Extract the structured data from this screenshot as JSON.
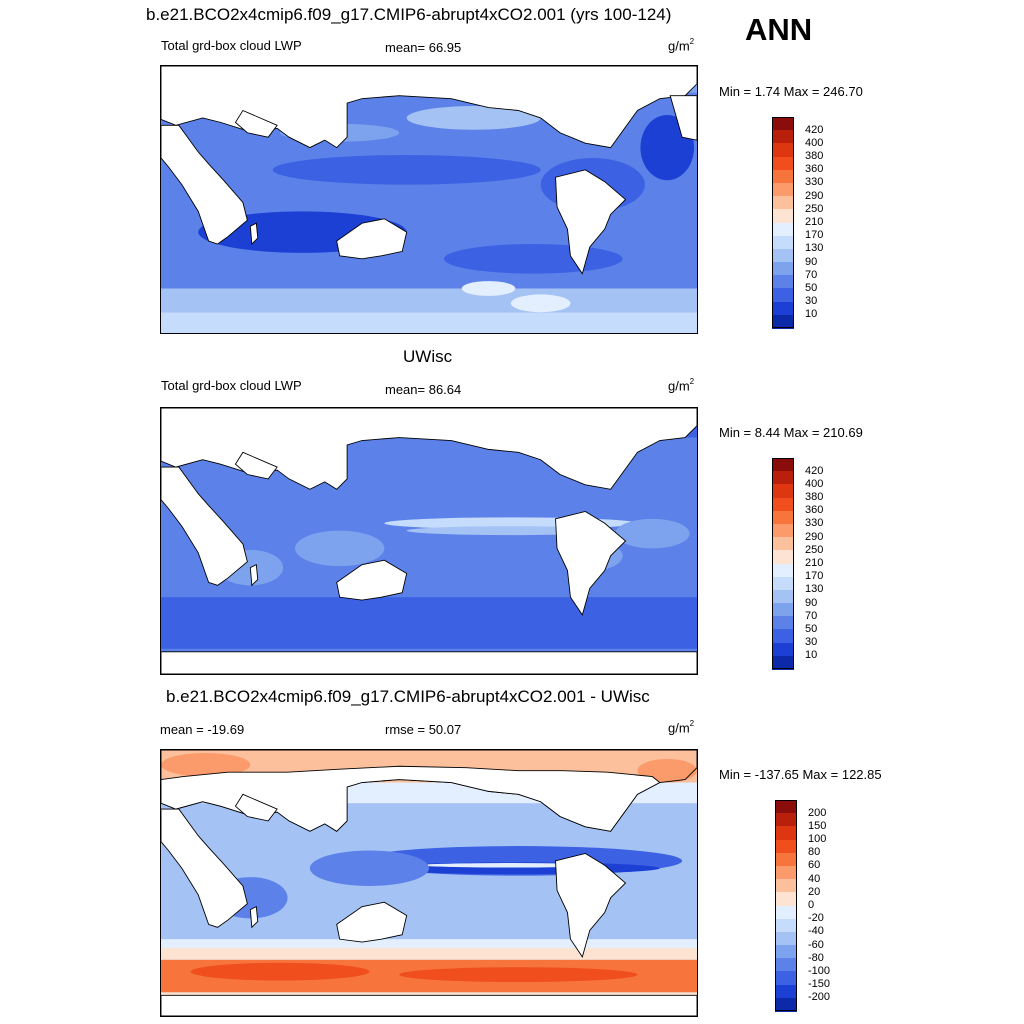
{
  "season": "ANN",
  "panels": [
    {
      "title": "b.e21.BCO2x4cmip6.f09_g17.CMIP6-abrupt4xCO2.001 (yrs 100-124)",
      "left_label": "Total grd-box cloud LWP",
      "center_label": "mean=  66.95",
      "units_base": "g/m",
      "units_exp": "2",
      "minmax": "Min =   1.74 Max = 246.70",
      "colorbar_ticks": [
        "420",
        "400",
        "380",
        "360",
        "330",
        "290",
        "250",
        "210",
        "170",
        "130",
        "90",
        "70",
        "50",
        "30",
        "10"
      ],
      "colorbar_colors": [
        "#8b0d0b",
        "#b8200c",
        "#dd3610",
        "#f04e1d",
        "#f7743c",
        "#fb9b6c",
        "#fcc09d",
        "#fde3d1",
        "#e3efff",
        "#c5dcfc",
        "#a5c2f4",
        "#7ea3ee",
        "#5c82ea",
        "#3c62e3",
        "#1d40d4",
        "#0b29a8"
      ],
      "map_style": "model"
    },
    {
      "title": "UWisc",
      "left_label": "Total grd-box cloud LWP",
      "center_label": "mean=  86.64",
      "units_base": "g/m",
      "units_exp": "2",
      "minmax": "Min =   8.44 Max = 210.69",
      "colorbar_ticks": [
        "420",
        "400",
        "380",
        "360",
        "330",
        "290",
        "250",
        "210",
        "170",
        "130",
        "90",
        "70",
        "50",
        "30",
        "10"
      ],
      "colorbar_colors": [
        "#8b0d0b",
        "#b8200c",
        "#dd3610",
        "#f04e1d",
        "#f7743c",
        "#fb9b6c",
        "#fcc09d",
        "#fde3d1",
        "#e3efff",
        "#c5dcfc",
        "#a5c2f4",
        "#7ea3ee",
        "#5c82ea",
        "#3c62e3",
        "#1d40d4",
        "#0b29a8"
      ],
      "map_style": "obs"
    },
    {
      "title": "b.e21.BCO2x4cmip6.f09_g17.CMIP6-abrupt4xCO2.001 - UWisc",
      "left_label": "mean = -19.69",
      "center_label": "rmse =  50.07",
      "units_base": "g/m",
      "units_exp": "2",
      "minmax": "Min = -137.65 Max = 122.85",
      "colorbar_ticks": [
        "200",
        "150",
        "100",
        "80",
        "60",
        "40",
        "20",
        "0",
        "-20",
        "-40",
        "-60",
        "-80",
        "-100",
        "-150",
        "-200"
      ],
      "colorbar_colors": [
        "#8b0d0b",
        "#b8200c",
        "#dd3610",
        "#f04e1d",
        "#f7743c",
        "#fb9b6c",
        "#fcc09d",
        "#fde3d1",
        "#e3efff",
        "#c5dcfc",
        "#a5c2f4",
        "#7ea3ee",
        "#5c82ea",
        "#3c62e3",
        "#1d40d4",
        "#0b29a8"
      ],
      "map_style": "diff"
    }
  ]
}
